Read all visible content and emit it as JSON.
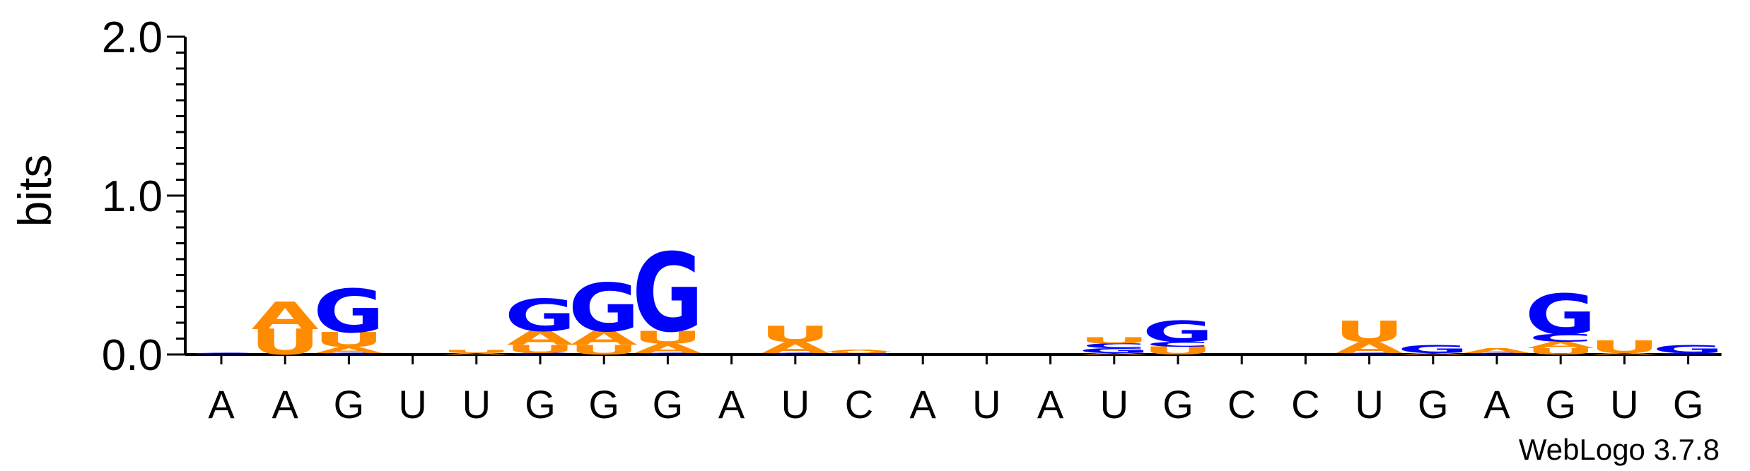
{
  "chart_data": {
    "type": "sequence-logo",
    "ylabel": "bits",
    "ylim": [
      0,
      2
    ],
    "yticks": [
      {
        "value": 0,
        "label": "0.0"
      },
      {
        "value": 1,
        "label": "1.0"
      },
      {
        "value": 2,
        "label": "2.0"
      }
    ],
    "colors": {
      "A": "#ff8c00",
      "U": "#ff8c00",
      "G": "#0000ff",
      "C": "#0000ff"
    },
    "positions": [
      {
        "label": "A",
        "stack": [
          {
            "letter": "C",
            "bits": 0.01
          }
        ]
      },
      {
        "label": "A",
        "stack": [
          {
            "letter": "U",
            "bits": 0.16
          },
          {
            "letter": "A",
            "bits": 0.17
          }
        ]
      },
      {
        "label": "G",
        "stack": [
          {
            "letter": "C",
            "bits": 0.01
          },
          {
            "letter": "A",
            "bits": 0.04
          },
          {
            "letter": "U",
            "bits": 0.09
          },
          {
            "letter": "G",
            "bits": 0.27
          }
        ]
      },
      {
        "label": "U",
        "stack": []
      },
      {
        "label": "U",
        "stack": [
          {
            "letter": "A",
            "bits": 0.01
          },
          {
            "letter": "U",
            "bits": 0.02
          }
        ]
      },
      {
        "label": "G",
        "stack": [
          {
            "letter": "C",
            "bits": 0.01
          },
          {
            "letter": "U",
            "bits": 0.05
          },
          {
            "letter": "A",
            "bits": 0.09
          },
          {
            "letter": "G",
            "bits": 0.2
          }
        ]
      },
      {
        "label": "G",
        "stack": [
          {
            "letter": "U",
            "bits": 0.06
          },
          {
            "letter": "A",
            "bits": 0.09
          },
          {
            "letter": "G",
            "bits": 0.3
          }
        ]
      },
      {
        "label": "G",
        "stack": [
          {
            "letter": "C",
            "bits": 0.01
          },
          {
            "letter": "A",
            "bits": 0.06
          },
          {
            "letter": "U",
            "bits": 0.08
          },
          {
            "letter": "G",
            "bits": 0.49
          }
        ]
      },
      {
        "label": "A",
        "stack": []
      },
      {
        "label": "U",
        "stack": [
          {
            "letter": "C",
            "bits": 0.01
          },
          {
            "letter": "A",
            "bits": 0.07
          },
          {
            "letter": "U",
            "bits": 0.1
          }
        ]
      },
      {
        "label": "C",
        "stack": [
          {
            "letter": "G",
            "bits": 0.01
          },
          {
            "letter": "U",
            "bits": 0.01
          },
          {
            "letter": "A",
            "bits": 0.01
          }
        ]
      },
      {
        "label": "A",
        "stack": []
      },
      {
        "label": "U",
        "stack": []
      },
      {
        "label": "A",
        "stack": []
      },
      {
        "label": "U",
        "stack": [
          {
            "letter": "A",
            "bits": 0.01
          },
          {
            "letter": "G",
            "bits": 0.03
          },
          {
            "letter": "C",
            "bits": 0.03
          },
          {
            "letter": "U",
            "bits": 0.04
          }
        ]
      },
      {
        "label": "G",
        "stack": [
          {
            "letter": "U",
            "bits": 0.05
          },
          {
            "letter": "C",
            "bits": 0.03
          },
          {
            "letter": "G",
            "bits": 0.13
          }
        ]
      },
      {
        "label": "C",
        "stack": []
      },
      {
        "label": "C",
        "stack": []
      },
      {
        "label": "U",
        "stack": [
          {
            "letter": "C",
            "bits": 0.01
          },
          {
            "letter": "A",
            "bits": 0.07
          },
          {
            "letter": "U",
            "bits": 0.13
          }
        ]
      },
      {
        "label": "G",
        "stack": [
          {
            "letter": "A",
            "bits": 0.01
          },
          {
            "letter": "G",
            "bits": 0.05
          }
        ]
      },
      {
        "label": "A",
        "stack": [
          {
            "letter": "C",
            "bits": 0.01
          },
          {
            "letter": "A",
            "bits": 0.03
          }
        ]
      },
      {
        "label": "G",
        "stack": [
          {
            "letter": "U",
            "bits": 0.04
          },
          {
            "letter": "A",
            "bits": 0.04
          },
          {
            "letter": "C",
            "bits": 0.05
          },
          {
            "letter": "G",
            "bits": 0.25
          }
        ]
      },
      {
        "label": "U",
        "stack": [
          {
            "letter": "A",
            "bits": 0.01
          },
          {
            "letter": "U",
            "bits": 0.08
          }
        ]
      },
      {
        "label": "G",
        "stack": [
          {
            "letter": "C",
            "bits": 0.01
          },
          {
            "letter": "G",
            "bits": 0.05
          }
        ]
      }
    ]
  },
  "credit": "WebLogo 3.7.8"
}
